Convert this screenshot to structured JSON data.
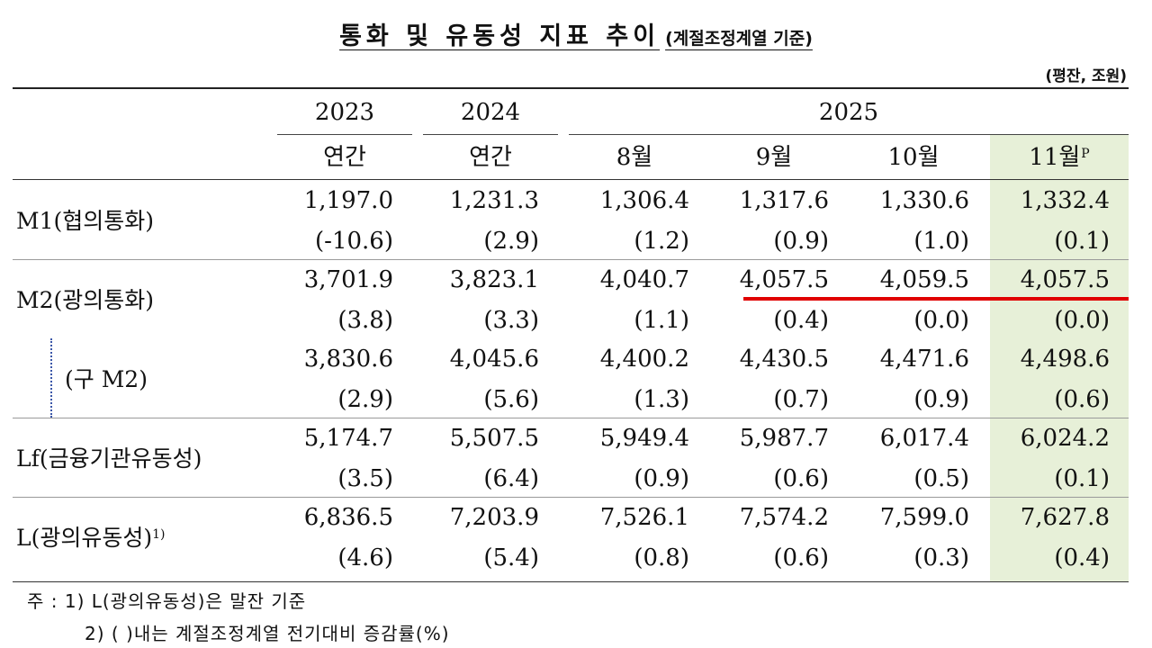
{
  "title": {
    "main": "통화 및 유동성 지표 추이",
    "sub": "(계절조정계열 기준)"
  },
  "unit": "(평잔, 조원)",
  "years": [
    "2023",
    "2024",
    "2025"
  ],
  "periods": [
    "연간",
    "연간",
    "8월",
    "9월",
    "10월",
    "11월"
  ],
  "preliminary_mark": "P",
  "rows": [
    {
      "label": "M1(협의통화)",
      "footnote": "",
      "values": [
        "1,197.0",
        "1,231.3",
        "1,306.4",
        "1,317.6",
        "1,330.6",
        "1,332.4"
      ],
      "changes": [
        "(-10.6)",
        "(2.9)",
        "(1.2)",
        "(0.9)",
        "(1.0)",
        "(0.1)"
      ]
    },
    {
      "label": "M2(광의통화)",
      "footnote": "",
      "values": [
        "3,701.9",
        "3,823.1",
        "4,040.7",
        "4,057.5",
        "4,059.5",
        "4,057.5"
      ],
      "changes": [
        "(3.8)",
        "(3.3)",
        "(1.1)",
        "(0.4)",
        "(0.0)",
        "(0.0)"
      ]
    },
    {
      "label": "(구  M2)",
      "footnote": "",
      "values": [
        "3,830.6",
        "4,045.6",
        "4,400.2",
        "4,430.5",
        "4,471.6",
        "4,498.6"
      ],
      "changes": [
        "(2.9)",
        "(5.6)",
        "(1.3)",
        "(0.7)",
        "(0.9)",
        "(0.6)"
      ]
    },
    {
      "label": "Lf(금융기관유동성)",
      "footnote": "",
      "values": [
        "5,174.7",
        "5,507.5",
        "5,949.4",
        "5,987.7",
        "6,017.4",
        "6,024.2"
      ],
      "changes": [
        "(3.5)",
        "(6.4)",
        "(0.9)",
        "(0.6)",
        "(0.5)",
        "(0.1)"
      ]
    },
    {
      "label": "L(광의유동성)",
      "footnote": "1)",
      "values": [
        "6,836.5",
        "7,203.9",
        "7,526.1",
        "7,574.2",
        "7,599.0",
        "7,627.8"
      ],
      "changes": [
        "(4.6)",
        "(5.4)",
        "(0.8)",
        "(0.6)",
        "(0.3)",
        "(0.4)"
      ]
    }
  ],
  "notes": [
    "주 : 1) L(광의유동성)은 말잔 기준",
    "2) (    )내는 계절조정계열 전기대비 증감률(%)"
  ],
  "colors": {
    "highlight": "#e7f0d8",
    "annotation_line": "#e00000"
  }
}
